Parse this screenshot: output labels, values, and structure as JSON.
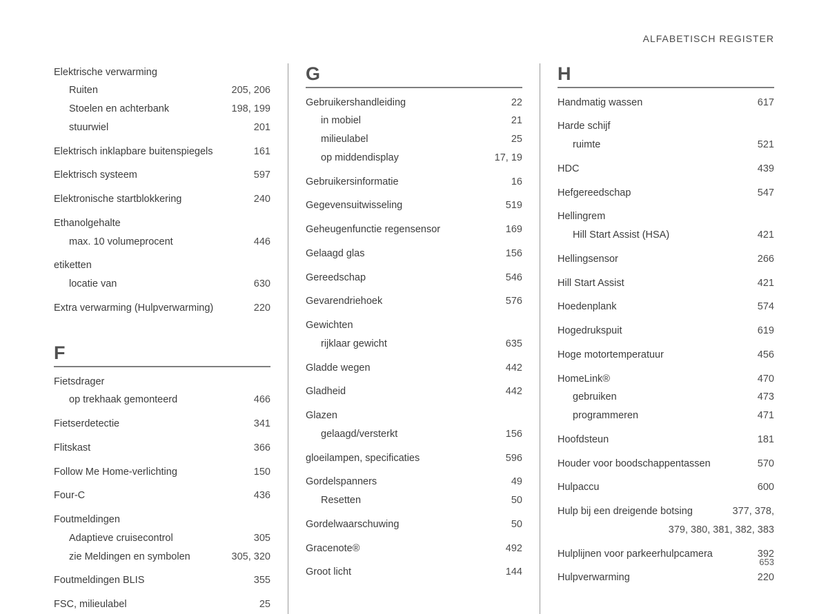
{
  "running_head": "ALFABETISCH REGISTER",
  "page_number": "653",
  "columns": [
    {
      "blocks": [
        {
          "heading": null,
          "entries": [
            {
              "label": "Elektrische verwarming",
              "pages": "",
              "sub": false
            },
            {
              "label": "Ruiten",
              "pages": "205, 206",
              "sub": true
            },
            {
              "label": "Stoelen en achterbank",
              "pages": "198, 199",
              "sub": true
            },
            {
              "label": "stuurwiel",
              "pages": "201",
              "sub": true
            },
            {
              "gap": true
            },
            {
              "label": "Elektrisch inklapbare buitenspiegels",
              "pages": "161",
              "sub": false
            },
            {
              "gap": true
            },
            {
              "label": "Elektrisch systeem",
              "pages": "597",
              "sub": false
            },
            {
              "gap": true
            },
            {
              "label": "Elektronische startblokkering",
              "pages": "240",
              "sub": false
            },
            {
              "gap": true
            },
            {
              "label": "Ethanolgehalte",
              "pages": "",
              "sub": false
            },
            {
              "label": "max. 10 volumeprocent",
              "pages": "446",
              "sub": true
            },
            {
              "gap": true
            },
            {
              "label": "etiketten",
              "pages": "",
              "sub": false
            },
            {
              "label": "locatie van",
              "pages": "630",
              "sub": true
            },
            {
              "gap": true
            },
            {
              "label": "Extra verwarming (Hulpverwarming)",
              "pages": "220",
              "sub": false
            }
          ]
        },
        {
          "heading": "F",
          "entries": [
            {
              "label": "Fietsdrager",
              "pages": "",
              "sub": false
            },
            {
              "label": "op trekhaak gemonteerd",
              "pages": "466",
              "sub": true
            },
            {
              "gap": true
            },
            {
              "label": "Fietserdetectie",
              "pages": "341",
              "sub": false
            },
            {
              "gap": true
            },
            {
              "label": "Flitskast",
              "pages": "366",
              "sub": false
            },
            {
              "gap": true
            },
            {
              "label": "Follow Me Home-verlichting",
              "pages": "150",
              "sub": false
            },
            {
              "gap": true
            },
            {
              "label": "Four-C",
              "pages": "436",
              "sub": false
            },
            {
              "gap": true
            },
            {
              "label": "Foutmeldingen",
              "pages": "",
              "sub": false
            },
            {
              "label": "Adaptieve cruisecontrol",
              "pages": "305",
              "sub": true
            },
            {
              "label": "zie Meldingen en symbolen",
              "pages": "305, 320",
              "sub": true
            },
            {
              "gap": true
            },
            {
              "label": "Foutmeldingen BLIS",
              "pages": "355",
              "sub": false
            },
            {
              "gap": true
            },
            {
              "label": "FSC, milieulabel",
              "pages": "25",
              "sub": false
            }
          ]
        }
      ]
    },
    {
      "blocks": [
        {
          "heading": "G",
          "entries": [
            {
              "label": "Gebruikershandleiding",
              "pages": "22",
              "sub": false
            },
            {
              "label": "in mobiel",
              "pages": "21",
              "sub": true
            },
            {
              "label": "milieulabel",
              "pages": "25",
              "sub": true
            },
            {
              "label": "op middendisplay",
              "pages": "17, 19",
              "sub": true
            },
            {
              "gap": true
            },
            {
              "label": "Gebruikersinformatie",
              "pages": "16",
              "sub": false
            },
            {
              "gap": true
            },
            {
              "label": "Gegevensuitwisseling",
              "pages": "519",
              "sub": false
            },
            {
              "gap": true
            },
            {
              "label": "Geheugenfunctie regensensor",
              "pages": "169",
              "sub": false
            },
            {
              "gap": true
            },
            {
              "label": "Gelaagd glas",
              "pages": "156",
              "sub": false
            },
            {
              "gap": true
            },
            {
              "label": "Gereedschap",
              "pages": "546",
              "sub": false
            },
            {
              "gap": true
            },
            {
              "label": "Gevarendriehoek",
              "pages": "576",
              "sub": false
            },
            {
              "gap": true
            },
            {
              "label": "Gewichten",
              "pages": "",
              "sub": false
            },
            {
              "label": "rijklaar gewicht",
              "pages": "635",
              "sub": true
            },
            {
              "gap": true
            },
            {
              "label": "Gladde wegen",
              "pages": "442",
              "sub": false
            },
            {
              "gap": true
            },
            {
              "label": "Gladheid",
              "pages": "442",
              "sub": false
            },
            {
              "gap": true
            },
            {
              "label": "Glazen",
              "pages": "",
              "sub": false
            },
            {
              "label": "gelaagd/versterkt",
              "pages": "156",
              "sub": true
            },
            {
              "gap": true
            },
            {
              "label": "gloeilampen, specificaties",
              "pages": "596",
              "sub": false
            },
            {
              "gap": true
            },
            {
              "label": "Gordelspanners",
              "pages": "49",
              "sub": false
            },
            {
              "label": "Resetten",
              "pages": "50",
              "sub": true
            },
            {
              "gap": true
            },
            {
              "label": "Gordelwaarschuwing",
              "pages": "50",
              "sub": false
            },
            {
              "gap": true
            },
            {
              "label": "Gracenote®",
              "pages": "492",
              "sub": false
            },
            {
              "gap": true
            },
            {
              "label": "Groot licht",
              "pages": "144",
              "sub": false
            }
          ]
        }
      ]
    },
    {
      "blocks": [
        {
          "heading": "H",
          "entries": [
            {
              "label": "Handmatig wassen",
              "pages": "617",
              "sub": false
            },
            {
              "gap": true
            },
            {
              "label": "Harde schijf",
              "pages": "",
              "sub": false
            },
            {
              "label": "ruimte",
              "pages": "521",
              "sub": true
            },
            {
              "gap": true
            },
            {
              "label": "HDC",
              "pages": "439",
              "sub": false
            },
            {
              "gap": true
            },
            {
              "label": "Hefgereedschap",
              "pages": "547",
              "sub": false
            },
            {
              "gap": true
            },
            {
              "label": "Hellingrem",
              "pages": "",
              "sub": false
            },
            {
              "label": "Hill Start Assist (HSA)",
              "pages": "421",
              "sub": true
            },
            {
              "gap": true
            },
            {
              "label": "Hellingsensor",
              "pages": "266",
              "sub": false
            },
            {
              "gap": true
            },
            {
              "label": "Hill Start Assist",
              "pages": "421",
              "sub": false
            },
            {
              "gap": true
            },
            {
              "label": "Hoedenplank",
              "pages": "574",
              "sub": false
            },
            {
              "gap": true
            },
            {
              "label": "Hogedrukspuit",
              "pages": "619",
              "sub": false
            },
            {
              "gap": true
            },
            {
              "label": "Hoge motortemperatuur",
              "pages": "456",
              "sub": false
            },
            {
              "gap": true
            },
            {
              "label": "HomeLink®",
              "pages": "470",
              "sub": false
            },
            {
              "label": "gebruiken",
              "pages": "473",
              "sub": true
            },
            {
              "label": "programmeren",
              "pages": "471",
              "sub": true
            },
            {
              "gap": true
            },
            {
              "label": "Hoofdsteun",
              "pages": "181",
              "sub": false
            },
            {
              "gap": true
            },
            {
              "label": "Houder voor boodschappentassen",
              "pages": "570",
              "sub": false
            },
            {
              "gap": true
            },
            {
              "label": "Hulpaccu",
              "pages": "600",
              "sub": false
            },
            {
              "gap": true
            },
            {
              "label": "Hulp bij een dreigende botsing",
              "pages": "377, 378,",
              "sub": false
            },
            {
              "continuation": "379, 380, 381, 382, 383"
            },
            {
              "gap": true
            },
            {
              "label": "Hulplijnen voor parkeerhulpcamera",
              "pages": "392",
              "sub": false
            },
            {
              "gap": true
            },
            {
              "label": "Hulpverwarming",
              "pages": "220",
              "sub": false
            }
          ]
        }
      ]
    }
  ]
}
